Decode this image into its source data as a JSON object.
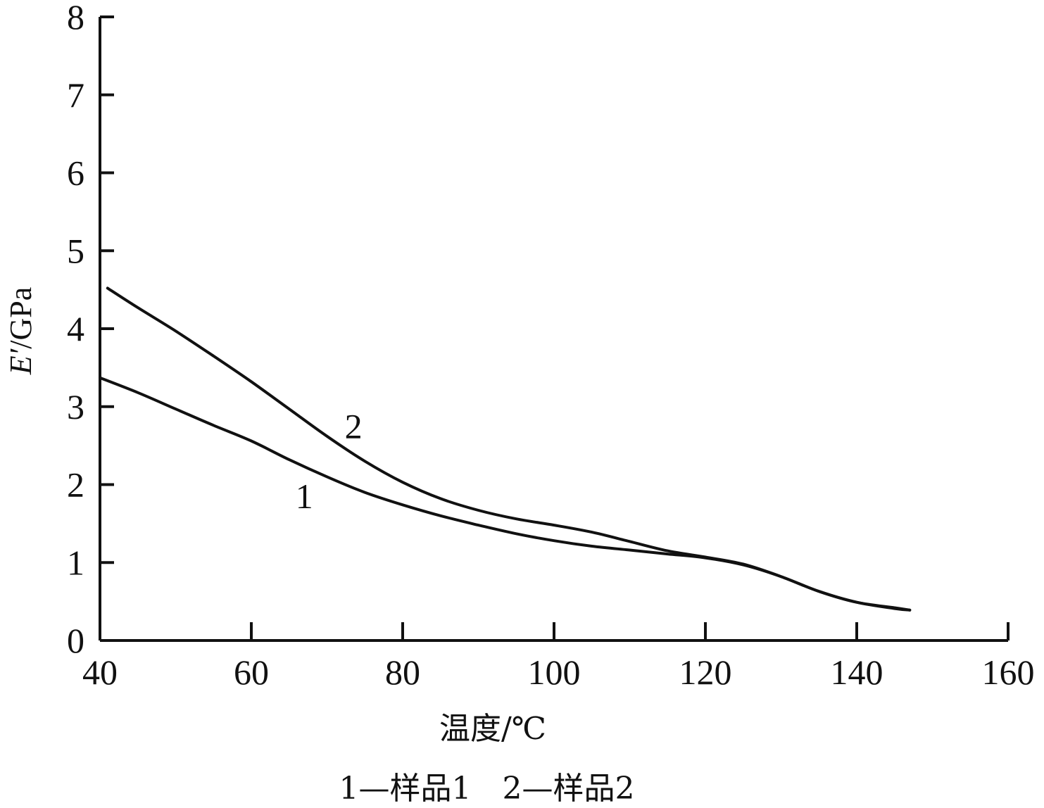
{
  "chart_data": {
    "type": "line",
    "xlabel": "温度/℃",
    "ylabel_italic": "E′",
    "ylabel_rest": "/GPa",
    "xlim": [
      40,
      160
    ],
    "ylim": [
      0,
      8
    ],
    "x_ticks": [
      "40",
      "60",
      "80",
      "100",
      "120",
      "140",
      "160"
    ],
    "y_ticks": [
      "0",
      "1",
      "2",
      "3",
      "4",
      "5",
      "6",
      "7",
      "8"
    ],
    "grid": false,
    "series": [
      {
        "name": "1",
        "x": [
          40,
          45,
          50,
          55,
          60,
          65,
          70,
          75,
          80,
          85,
          90,
          95,
          100,
          105,
          110,
          115,
          120,
          125,
          130,
          135,
          140,
          145,
          147
        ],
        "y": [
          3.37,
          3.18,
          2.97,
          2.76,
          2.56,
          2.32,
          2.1,
          1.9,
          1.74,
          1.6,
          1.48,
          1.37,
          1.28,
          1.21,
          1.16,
          1.11,
          1.06,
          0.97,
          0.82,
          0.63,
          0.49,
          0.41,
          0.39
        ],
        "label_at": [
          67,
          1.85
        ]
      },
      {
        "name": "2",
        "x": [
          41,
          45,
          50,
          55,
          60,
          65,
          70,
          75,
          80,
          85,
          90,
          95,
          100,
          105,
          110,
          115,
          120,
          125,
          130,
          135,
          140,
          145,
          147
        ],
        "y": [
          4.52,
          4.27,
          3.97,
          3.65,
          3.32,
          2.97,
          2.62,
          2.3,
          2.03,
          1.82,
          1.67,
          1.56,
          1.48,
          1.39,
          1.27,
          1.15,
          1.07,
          0.98,
          0.82,
          0.63,
          0.49,
          0.42,
          0.39
        ],
        "label_at": [
          73.5,
          2.75
        ]
      }
    ]
  },
  "caption": "1—样品1　2—样品2"
}
